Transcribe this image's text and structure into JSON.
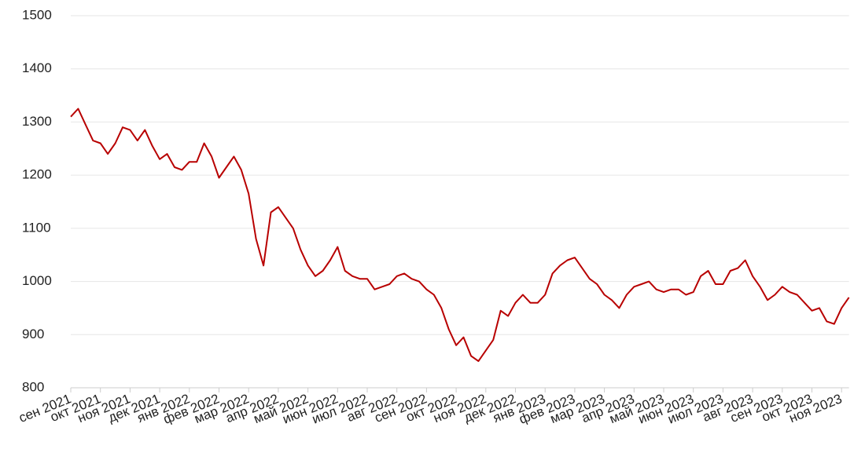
{
  "chart_data": {
    "type": "line",
    "color": "#b80000",
    "ylim": [
      800,
      1500
    ],
    "yticks": [
      800,
      900,
      1000,
      1100,
      1200,
      1300,
      1400,
      1500
    ],
    "grid": true,
    "categories": [
      "сен 2021",
      null,
      null,
      null,
      "окт 2021",
      null,
      null,
      null,
      "ноя 2021",
      null,
      null,
      null,
      "дек 2021",
      null,
      null,
      null,
      "янв 2022",
      null,
      null,
      null,
      "фев 2022",
      null,
      null,
      null,
      "мар 2022",
      null,
      null,
      null,
      "апр 2022",
      null,
      null,
      null,
      "май 2022",
      null,
      null,
      null,
      "июн 2022",
      null,
      null,
      null,
      "июл 2022",
      null,
      null,
      null,
      "авг 2022",
      null,
      null,
      null,
      "сен 2022",
      null,
      null,
      null,
      "окт 2022",
      null,
      null,
      null,
      "ноя 2022",
      null,
      null,
      null,
      "дек 2022",
      null,
      null,
      null,
      "янв 2023",
      null,
      null,
      null,
      "фев 2023",
      null,
      null,
      null,
      "мар 2023",
      null,
      null,
      null,
      "апр 2023",
      null,
      null,
      null,
      "май 2023",
      null,
      null,
      null,
      "июн 2023",
      null,
      null,
      null,
      "июл 2023",
      null,
      null,
      null,
      "авг 2023",
      null,
      null,
      null,
      "сен 2023",
      null,
      null,
      null,
      "окт 2023",
      null,
      null,
      null,
      "ноя 2023",
      null
    ],
    "values": [
      1310,
      1325,
      1295,
      1265,
      1260,
      1240,
      1260,
      1290,
      1285,
      1265,
      1285,
      1255,
      1230,
      1240,
      1215,
      1210,
      1225,
      1225,
      1260,
      1235,
      1195,
      1215,
      1235,
      1210,
      1165,
      1080,
      1030,
      1130,
      1140,
      1120,
      1100,
      1060,
      1030,
      1010,
      1020,
      1040,
      1065,
      1020,
      1010,
      1005,
      1005,
      985,
      990,
      995,
      1010,
      1015,
      1005,
      1000,
      985,
      975,
      950,
      910,
      880,
      895,
      860,
      850,
      870,
      890,
      945,
      935,
      960,
      975,
      960,
      960,
      975,
      1015,
      1030,
      1040,
      1045,
      1025,
      1005,
      995,
      975,
      965,
      950,
      975,
      990,
      995,
      1000,
      985,
      980,
      985,
      985,
      975,
      980,
      1010,
      1020,
      995,
      995,
      1020,
      1025,
      1040,
      1010,
      990,
      965,
      975,
      990,
      980,
      975,
      960,
      945,
      950,
      925,
      920,
      950,
      970
    ]
  }
}
